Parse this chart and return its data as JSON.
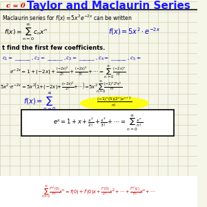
{
  "bg_color": "#f5f5e8",
  "grid_color": "#c8c8a0",
  "title": "Taylor and Maclaurin Series",
  "title_color": "#1a1aff",
  "title_fontsize": 11,
  "c_equals_0": "c = 0",
  "c_color": "#cc0000",
  "line1": "Maclaurin series for $f(x) = 5x^2e^{-2x}$ can be written",
  "line1_color": "#000000",
  "line2_left": "$f(x) = \\sum_{n=0}^{\\infty} c_n x^n$",
  "line2_right": "$f(x) = 5x^2 \\cdot e^{-2x}$",
  "line2_right_color": "#0000cc",
  "line3": "t find the first few coefficients.",
  "line4": "$c_1 =$ _____, $c_2 =$ _____, $c_3 =$ _____, $c_4 =$ _____, $c_5 =$ ...",
  "line4_color": "#0000cc",
  "line5": "$e^{-2x} = 1 + (-2x) + \\frac{(-2x)^2}{2!} + \\frac{(-2x)^3}{3!} + \\cdots = \\sum_{n=0}^{\\infty} \\frac{(-2x)^n}{n!}$",
  "line6": "$5x^2 \\cdot e^{-2x} = 5x^2\\left(1+(-2x)+\\frac{(-2x)^2}{2!}+\\cdots\\right) = 5x^2 \\sum_{n=0}^{\\infty} \\frac{(-1)^n 2^n x^n}{n!}$",
  "line7_left": "$f(x) = \\sum_{n=0}^{\\infty}$",
  "line7_formula": "$\\frac{(-1)^n(5)(2^n)x^{n+2}}{n!}$",
  "line7_highlight": "#ffff00",
  "box_formula": "$e^x = 1 + x + \\frac{x^2}{2!} + \\frac{x^3}{3!} + \\cdots = \\sum_{n=0}^{\\infty} \\frac{x^n}{n!}$",
  "box_color": "#000000",
  "bottom_formula": "$\\sum_{n=0}^{\\infty} \\frac{f^{(n)}(0)}{n!} x^n = f(0) + f'(0)x + \\frac{f''(0)}{2!}x^2 + \\cdots + \\frac{f^{(n)}(c)}{n!}x^n + \\cdots$",
  "bottom_color": "#cc0000",
  "bottom_bg": "#ffffff"
}
